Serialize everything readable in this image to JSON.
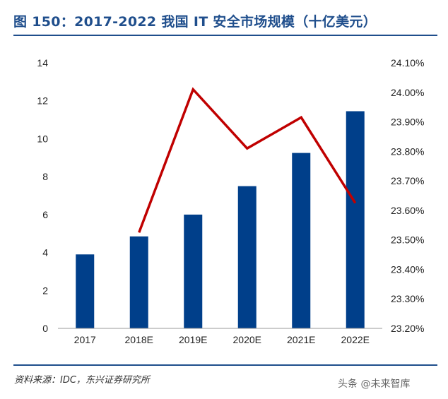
{
  "figure": {
    "title": "图 150：2017-2022 我国 IT 安全市场规模（十亿美元）",
    "source": "资料来源：IDC，东兴证券研究所",
    "watermark": "头条 @未来智库"
  },
  "chart_data": {
    "type": "bar",
    "categories": [
      "2017",
      "2018E",
      "2019E",
      "2020E",
      "2021E",
      "2022E"
    ],
    "series": [
      {
        "type": "bar",
        "axis": "left",
        "color": "#003f8a",
        "values": [
          3.9,
          4.85,
          6.0,
          7.5,
          9.25,
          11.45
        ]
      },
      {
        "type": "line",
        "axis": "right",
        "color": "#c00000",
        "values": [
          null,
          23.525,
          24.01,
          23.81,
          23.915,
          23.625
        ]
      }
    ],
    "y_left": {
      "ylim": [
        0,
        14
      ],
      "ticks": [
        "0",
        "2",
        "4",
        "6",
        "8",
        "10",
        "12",
        "14"
      ]
    },
    "y_right": {
      "ylim": [
        23.2,
        24.1
      ],
      "ticks": [
        "23.20%",
        "23.30%",
        "23.40%",
        "23.50%",
        "23.60%",
        "23.70%",
        "23.80%",
        "23.90%",
        "24.00%",
        "24.10%"
      ]
    },
    "grid": false,
    "legend": "none"
  }
}
